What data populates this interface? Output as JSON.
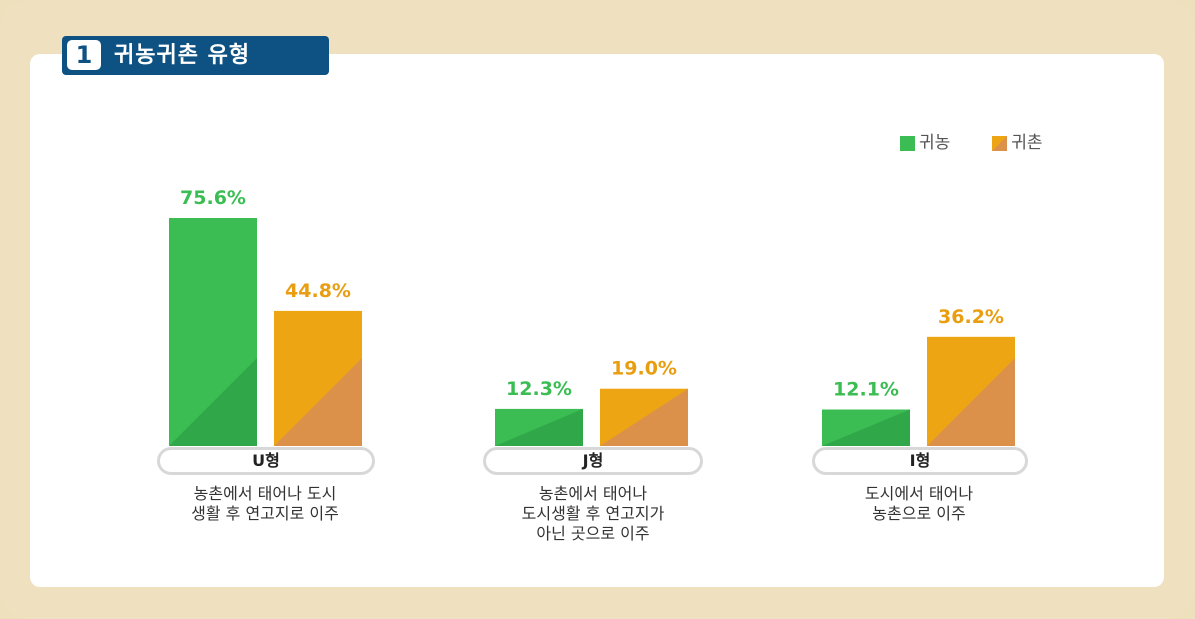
{
  "header": {
    "number": "1",
    "title": "귀농귀촌 유형"
  },
  "legend": [
    {
      "label": "귀농",
      "color": "#3bbd53"
    },
    {
      "label": "귀촌",
      "color": "#eea513"
    }
  ],
  "chart_data": {
    "type": "bar",
    "categories": [
      "U형",
      "J형",
      "I형"
    ],
    "series": [
      {
        "name": "귀농",
        "values": [
          75.6,
          12.3,
          12.1
        ],
        "labels": [
          "75.6%",
          "12.3%",
          "12.1%"
        ],
        "color": "#3bbd53",
        "shade": "#30a84a",
        "label_color": "#3bbd53"
      },
      {
        "name": "귀촌",
        "values": [
          44.8,
          19.0,
          36.2
        ],
        "labels": [
          "44.8%",
          "19.0%",
          "36.2%"
        ],
        "color": "#eea513",
        "shade": "#db914a",
        "label_color": "#e89e10"
      }
    ],
    "descriptions": [
      [
        "농촌에서 태어나 도시",
        "생활 후 연고지로 이주"
      ],
      [
        "농촌에서 태어나",
        "도시생활 후 연고지가",
        "아닌 곳으로 이주"
      ],
      [
        "도시에서 태어나",
        "농촌으로 이주"
      ]
    ],
    "ylim": [
      0,
      100
    ],
    "grid": false,
    "legend_position": "top-right"
  }
}
